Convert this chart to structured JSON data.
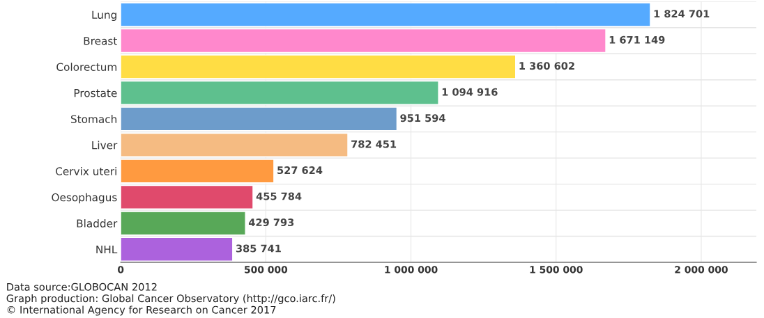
{
  "chart_data": {
    "type": "bar",
    "orientation": "horizontal",
    "categories": [
      "Lung",
      "Breast",
      "Colorectum",
      "Prostate",
      "Stomach",
      "Liver",
      "Cervix uteri",
      "Oesophagus",
      "Bladder",
      "NHL"
    ],
    "values": [
      1824701,
      1671149,
      1360602,
      1094916,
      951594,
      782451,
      527624,
      455784,
      429793,
      385741
    ],
    "value_labels": [
      "1 824 701",
      "1 671 149",
      "1 360 602",
      "1 094 916",
      "951 594",
      "782 451",
      "527 624",
      "455 784",
      "429 793",
      "385 741"
    ],
    "colors": [
      "#55aaff",
      "#ff88cc",
      "#ffdd44",
      "#5ec08e",
      "#6d9ccb",
      "#f5bb82",
      "#ff9a40",
      "#e04a6c",
      "#58a858",
      "#ac62dd"
    ],
    "xlim": [
      0,
      2190000
    ],
    "xticks": [
      0,
      {
        "value": 500000,
        "label": "500 000"
      },
      {
        "value": 1000000,
        "label": "1 000 000"
      },
      {
        "value": 1500000,
        "label": "1 500 000"
      },
      {
        "value": 2000000,
        "label": "2 000 000"
      }
    ],
    "grid": true,
    "annotations": [
      "Data source:GLOBOCAN 2012",
      "Graph production: Global Cancer Observatory (http://gco.iarc.fr/)",
      "© International Agency for Research on Cancer 2017"
    ]
  }
}
